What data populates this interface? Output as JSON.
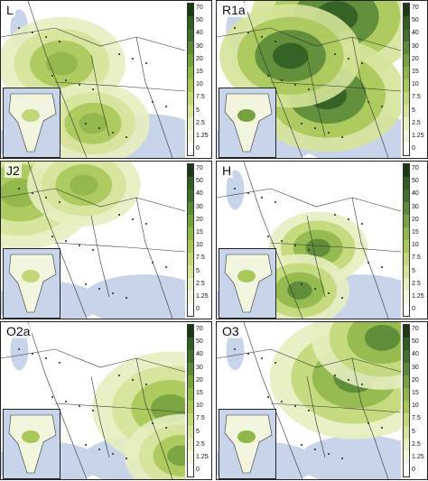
{
  "panels": [
    {
      "label": "L",
      "hot": [
        [
          0.33,
          0.4,
          0.45
        ],
        [
          0.5,
          0.78,
          0.4
        ]
      ],
      "hot_level": 0.55
    },
    {
      "label": "R1a",
      "hot": [
        [
          0.65,
          0.1,
          0.6
        ],
        [
          0.6,
          0.6,
          0.55
        ],
        [
          0.4,
          0.35,
          0.5
        ]
      ],
      "hot_level": 0.95
    },
    {
      "label": "J2",
      "hot": [
        [
          0.1,
          0.2,
          0.55
        ],
        [
          0.45,
          0.15,
          0.4
        ]
      ],
      "hot_level": 0.55
    },
    {
      "label": "H",
      "hot": [
        [
          0.55,
          0.55,
          0.35
        ],
        [
          0.45,
          0.82,
          0.35
        ]
      ],
      "hot_level": 0.7
    },
    {
      "label": "O2a",
      "hot": [
        [
          0.92,
          0.55,
          0.55
        ],
        [
          0.98,
          0.85,
          0.4
        ]
      ],
      "hot_level": 0.6
    },
    {
      "label": "O3",
      "hot": [
        [
          0.75,
          0.35,
          0.6
        ],
        [
          0.9,
          0.1,
          0.5
        ]
      ],
      "hot_level": 0.75
    }
  ],
  "legend": {
    "ticks": [
      "70",
      "50",
      "40",
      "30",
      "20",
      "15",
      "10",
      "7.5",
      "5",
      "2.5",
      "1.25",
      "0"
    ],
    "colors": [
      "#1d3a17",
      "#2f5e22",
      "#436f2e",
      "#5b8a39",
      "#76a23f",
      "#90b74a",
      "#a9c858",
      "#c2d878",
      "#d6e39a",
      "#e7eec0",
      "#f3f6de",
      "#ffffff"
    ]
  },
  "map_colors": {
    "water": "#c7d4ea",
    "land": "#ffffff",
    "border": "#333333",
    "contour": "#8fa38a"
  }
}
